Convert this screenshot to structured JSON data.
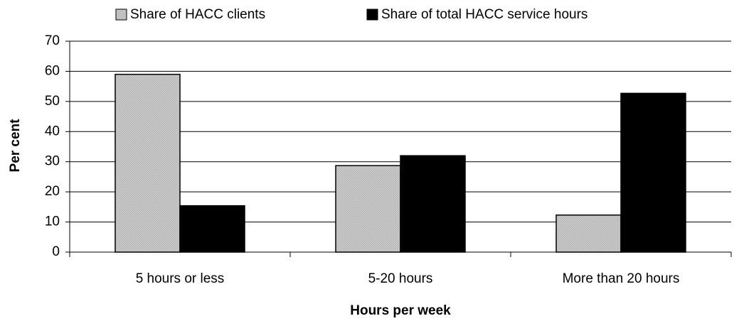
{
  "chart_data": {
    "type": "bar",
    "categories": [
      "5 hours or less",
      "5-20 hours",
      "More than 20 hours"
    ],
    "series": [
      {
        "name": "Share of HACC clients",
        "color": "#c8c8c8",
        "values": [
          59,
          28.7,
          12.3
        ]
      },
      {
        "name": "Share of total HACC service hours",
        "color": "#000000",
        "values": [
          15.4,
          32,
          52.7
        ]
      }
    ],
    "xlabel": "Hours per week",
    "ylabel": "Per cent",
    "ylim": [
      0,
      70
    ],
    "yticks": [
      0,
      10,
      20,
      30,
      40,
      50,
      60,
      70
    ],
    "grid": true,
    "legend": "top"
  }
}
